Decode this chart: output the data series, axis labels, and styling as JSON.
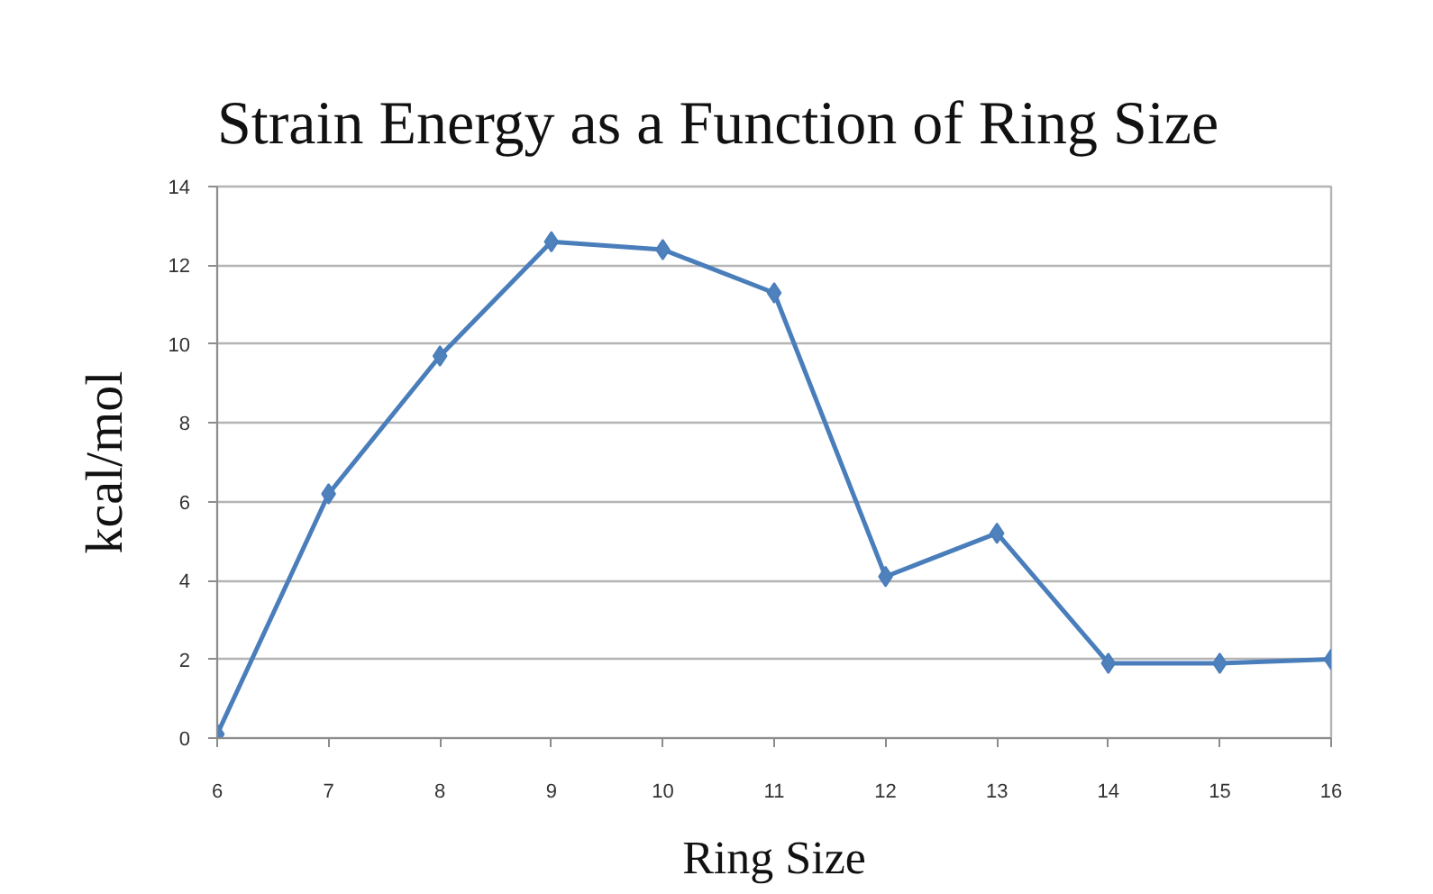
{
  "chart_data": {
    "type": "line",
    "title": "Strain Energy as a Function of Ring Size",
    "xlabel": "Ring Size",
    "ylabel": "kcal/mol",
    "x": [
      6,
      7,
      8,
      9,
      10,
      11,
      12,
      13,
      14,
      15,
      16
    ],
    "series": [
      {
        "color": "#4a7ebb",
        "values": [
          0.1,
          6.2,
          9.7,
          12.6,
          12.4,
          11.3,
          4.1,
          5.2,
          1.9,
          1.9,
          2.0
        ]
      }
    ],
    "xlim": [
      6,
      16
    ],
    "xticks": [
      6,
      7,
      8,
      9,
      10,
      11,
      12,
      13,
      14,
      15,
      16
    ],
    "ylim": [
      0,
      14
    ],
    "yticks": [
      0,
      2,
      4,
      6,
      8,
      10,
      12,
      14
    ],
    "grid": "y",
    "marker": "diamond",
    "line_style": "solid"
  }
}
